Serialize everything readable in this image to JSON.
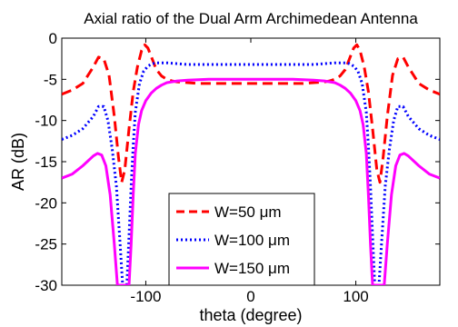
{
  "chart_data": {
    "type": "line",
    "title": "Axial ratio of the Dual Arm Archimedean Antenna",
    "xlabel": "theta (degree)",
    "ylabel": "AR (dB)",
    "xlim": [
      -180,
      180
    ],
    "ylim": [
      -30,
      0
    ],
    "xticks": [
      -100,
      0,
      100
    ],
    "yticks": [
      0,
      -5,
      -10,
      -15,
      -20,
      -25,
      -30
    ],
    "grid": false,
    "legend_position": "bottom-center",
    "series": [
      {
        "name": "W=50 μm",
        "color": "#ff0000",
        "style": "dashed",
        "x": [
          -180,
          -170,
          -160,
          -150,
          -145,
          -140,
          -135,
          -130,
          -126,
          -123,
          -120,
          -116,
          -112,
          -108,
          -104,
          -101,
          -98,
          -94,
          -90,
          -85,
          -80,
          -75,
          -70,
          -60,
          -50,
          -40,
          -30,
          -20,
          -10,
          0,
          10,
          20,
          30,
          40,
          50,
          60,
          70,
          75,
          80,
          85,
          90,
          94,
          98,
          101,
          104,
          108,
          112,
          116,
          120,
          123,
          126,
          130,
          135,
          140,
          145,
          150,
          160,
          170,
          180
        ],
        "y": [
          -6.8,
          -6.3,
          -5.5,
          -3.5,
          -2.3,
          -2.5,
          -4.5,
          -9.5,
          -14.5,
          -17.5,
          -16,
          -11,
          -6.5,
          -3.5,
          -1.5,
          -0.8,
          -1.2,
          -2.5,
          -3.8,
          -4.6,
          -5.0,
          -5.2,
          -5.3,
          -5.4,
          -5.5,
          -5.5,
          -5.5,
          -5.5,
          -5.5,
          -5.5,
          -5.5,
          -5.5,
          -5.5,
          -5.5,
          -5.5,
          -5.4,
          -5.3,
          -5.2,
          -5.0,
          -4.6,
          -3.8,
          -2.5,
          -1.2,
          -0.8,
          -1.5,
          -3.5,
          -6.5,
          -11,
          -16,
          -17.5,
          -14.5,
          -9.5,
          -4.5,
          -2.5,
          -2.3,
          -3.5,
          -5.5,
          -6.3,
          -6.8
        ]
      },
      {
        "name": "W=100 μm",
        "color": "#0000ff",
        "style": "dotted",
        "x": [
          -180,
          -170,
          -160,
          -150,
          -145,
          -140,
          -136,
          -132,
          -128,
          -125,
          -122,
          -120,
          -118,
          -116,
          -114,
          -112,
          -110,
          -106,
          -102,
          -98,
          -94,
          -90,
          -85,
          -80,
          -70,
          -60,
          -40,
          -20,
          0,
          20,
          40,
          60,
          70,
          80,
          85,
          90,
          94,
          98,
          102,
          106,
          110,
          112,
          114,
          116,
          118,
          120,
          122,
          125,
          128,
          132,
          136,
          140,
          145,
          150,
          160,
          170,
          180
        ],
        "y": [
          -12.3,
          -11.8,
          -11,
          -9.5,
          -8.3,
          -8.3,
          -10,
          -13.5,
          -18,
          -24,
          -30,
          -30,
          -30,
          -24,
          -18,
          -13,
          -9,
          -5.5,
          -4,
          -3.4,
          -3.1,
          -3.0,
          -3.0,
          -3.0,
          -3.1,
          -3.2,
          -3.2,
          -3.2,
          -3.2,
          -3.2,
          -3.2,
          -3.2,
          -3.1,
          -3.0,
          -3.0,
          -3.0,
          -3.1,
          -3.4,
          -4,
          -5.5,
          -9,
          -13,
          -18,
          -24,
          -30,
          -30,
          -30,
          -24,
          -18,
          -13.5,
          -10,
          -8.3,
          -8.3,
          -9.5,
          -11,
          -11.8,
          -12.3
        ]
      },
      {
        "name": "W=150 μm",
        "color": "#ff00ff",
        "style": "solid",
        "x": [
          -180,
          -170,
          -160,
          -150,
          -146,
          -142,
          -138,
          -134,
          -130,
          -127,
          -125,
          -123,
          -120,
          -118,
          -116,
          -114,
          -112,
          -110,
          -107,
          -104,
          -100,
          -95,
          -90,
          -85,
          -80,
          -70,
          -60,
          -40,
          -20,
          0,
          20,
          40,
          60,
          70,
          80,
          85,
          90,
          95,
          100,
          104,
          107,
          110,
          112,
          114,
          116,
          118,
          120,
          123,
          125,
          127,
          130,
          134,
          138,
          142,
          146,
          150,
          160,
          170,
          180
        ],
        "y": [
          -17,
          -16.5,
          -15.5,
          -14.3,
          -14.0,
          -14.2,
          -15.5,
          -19,
          -25,
          -30,
          -30,
          -30,
          -30,
          -30,
          -30,
          -25,
          -19,
          -14,
          -10.5,
          -8.8,
          -7.6,
          -6.7,
          -6.1,
          -5.7,
          -5.4,
          -5.2,
          -5.1,
          -5.0,
          -5.0,
          -5.0,
          -5.0,
          -5.0,
          -5.1,
          -5.2,
          -5.4,
          -5.7,
          -6.1,
          -6.7,
          -7.6,
          -8.8,
          -10.5,
          -14,
          -19,
          -25,
          -30,
          -30,
          -30,
          -30,
          -30,
          -30,
          -25,
          -19,
          -15.5,
          -14.2,
          -14.0,
          -14.3,
          -15.5,
          -16.5,
          -17
        ]
      }
    ]
  }
}
